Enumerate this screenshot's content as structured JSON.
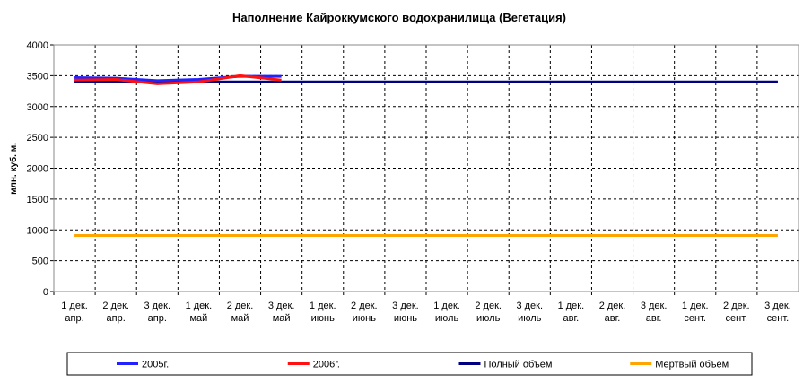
{
  "chart_data": {
    "type": "line",
    "title": "Наполнение Кайроккумского водохранилища (Вегетация)",
    "y_label": "млн. куб. м.",
    "categories": [
      [
        "1 дек.",
        "апр."
      ],
      [
        "2 дек.",
        "апр."
      ],
      [
        "3 дек.",
        "апр."
      ],
      [
        "1 дек.",
        "май"
      ],
      [
        "2 дек.",
        "май"
      ],
      [
        "3 дек.",
        "май"
      ],
      [
        "1 дек.",
        "июнь"
      ],
      [
        "2 дек.",
        "июнь"
      ],
      [
        "3 дек.",
        "июнь"
      ],
      [
        "1 дек.",
        "июль"
      ],
      [
        "2 дек.",
        "июль"
      ],
      [
        "3 дек.",
        "июль"
      ],
      [
        "1 дек.",
        "авг."
      ],
      [
        "2 дек.",
        "авг."
      ],
      [
        "3 дек.",
        "авг."
      ],
      [
        "1 дек.",
        "сент."
      ],
      [
        "2 дек.",
        "сент."
      ],
      [
        "3 дек.",
        "сент."
      ]
    ],
    "series": [
      {
        "name": "2005г.",
        "color": "#2222ff",
        "values": [
          3470,
          3460,
          3420,
          3440,
          3490,
          3490,
          null,
          null,
          null,
          null,
          null,
          null,
          null,
          null,
          null,
          null,
          null,
          null
        ]
      },
      {
        "name": "2006г.",
        "color": "#ff1111",
        "values": [
          3430,
          3440,
          3370,
          3400,
          3500,
          3430,
          null,
          null,
          null,
          null,
          null,
          null,
          null,
          null,
          null,
          null,
          null,
          null
        ]
      },
      {
        "name": "Полный объем",
        "color": "#000080",
        "values": [
          3400,
          3400,
          3400,
          3400,
          3400,
          3400,
          3400,
          3400,
          3400,
          3400,
          3400,
          3400,
          3400,
          3400,
          3400,
          3400,
          3400,
          3400
        ]
      },
      {
        "name": "Мертвый объем",
        "color": "#ffa500",
        "values": [
          910,
          910,
          910,
          910,
          910,
          910,
          910,
          910,
          910,
          910,
          910,
          910,
          910,
          910,
          910,
          910,
          910,
          910
        ]
      }
    ],
    "ylim": [
      0,
      4000
    ],
    "yticks": [
      0,
      500,
      1000,
      1500,
      2000,
      2500,
      3000,
      3500,
      4000
    ],
    "grid": true,
    "legend": "bottom"
  }
}
